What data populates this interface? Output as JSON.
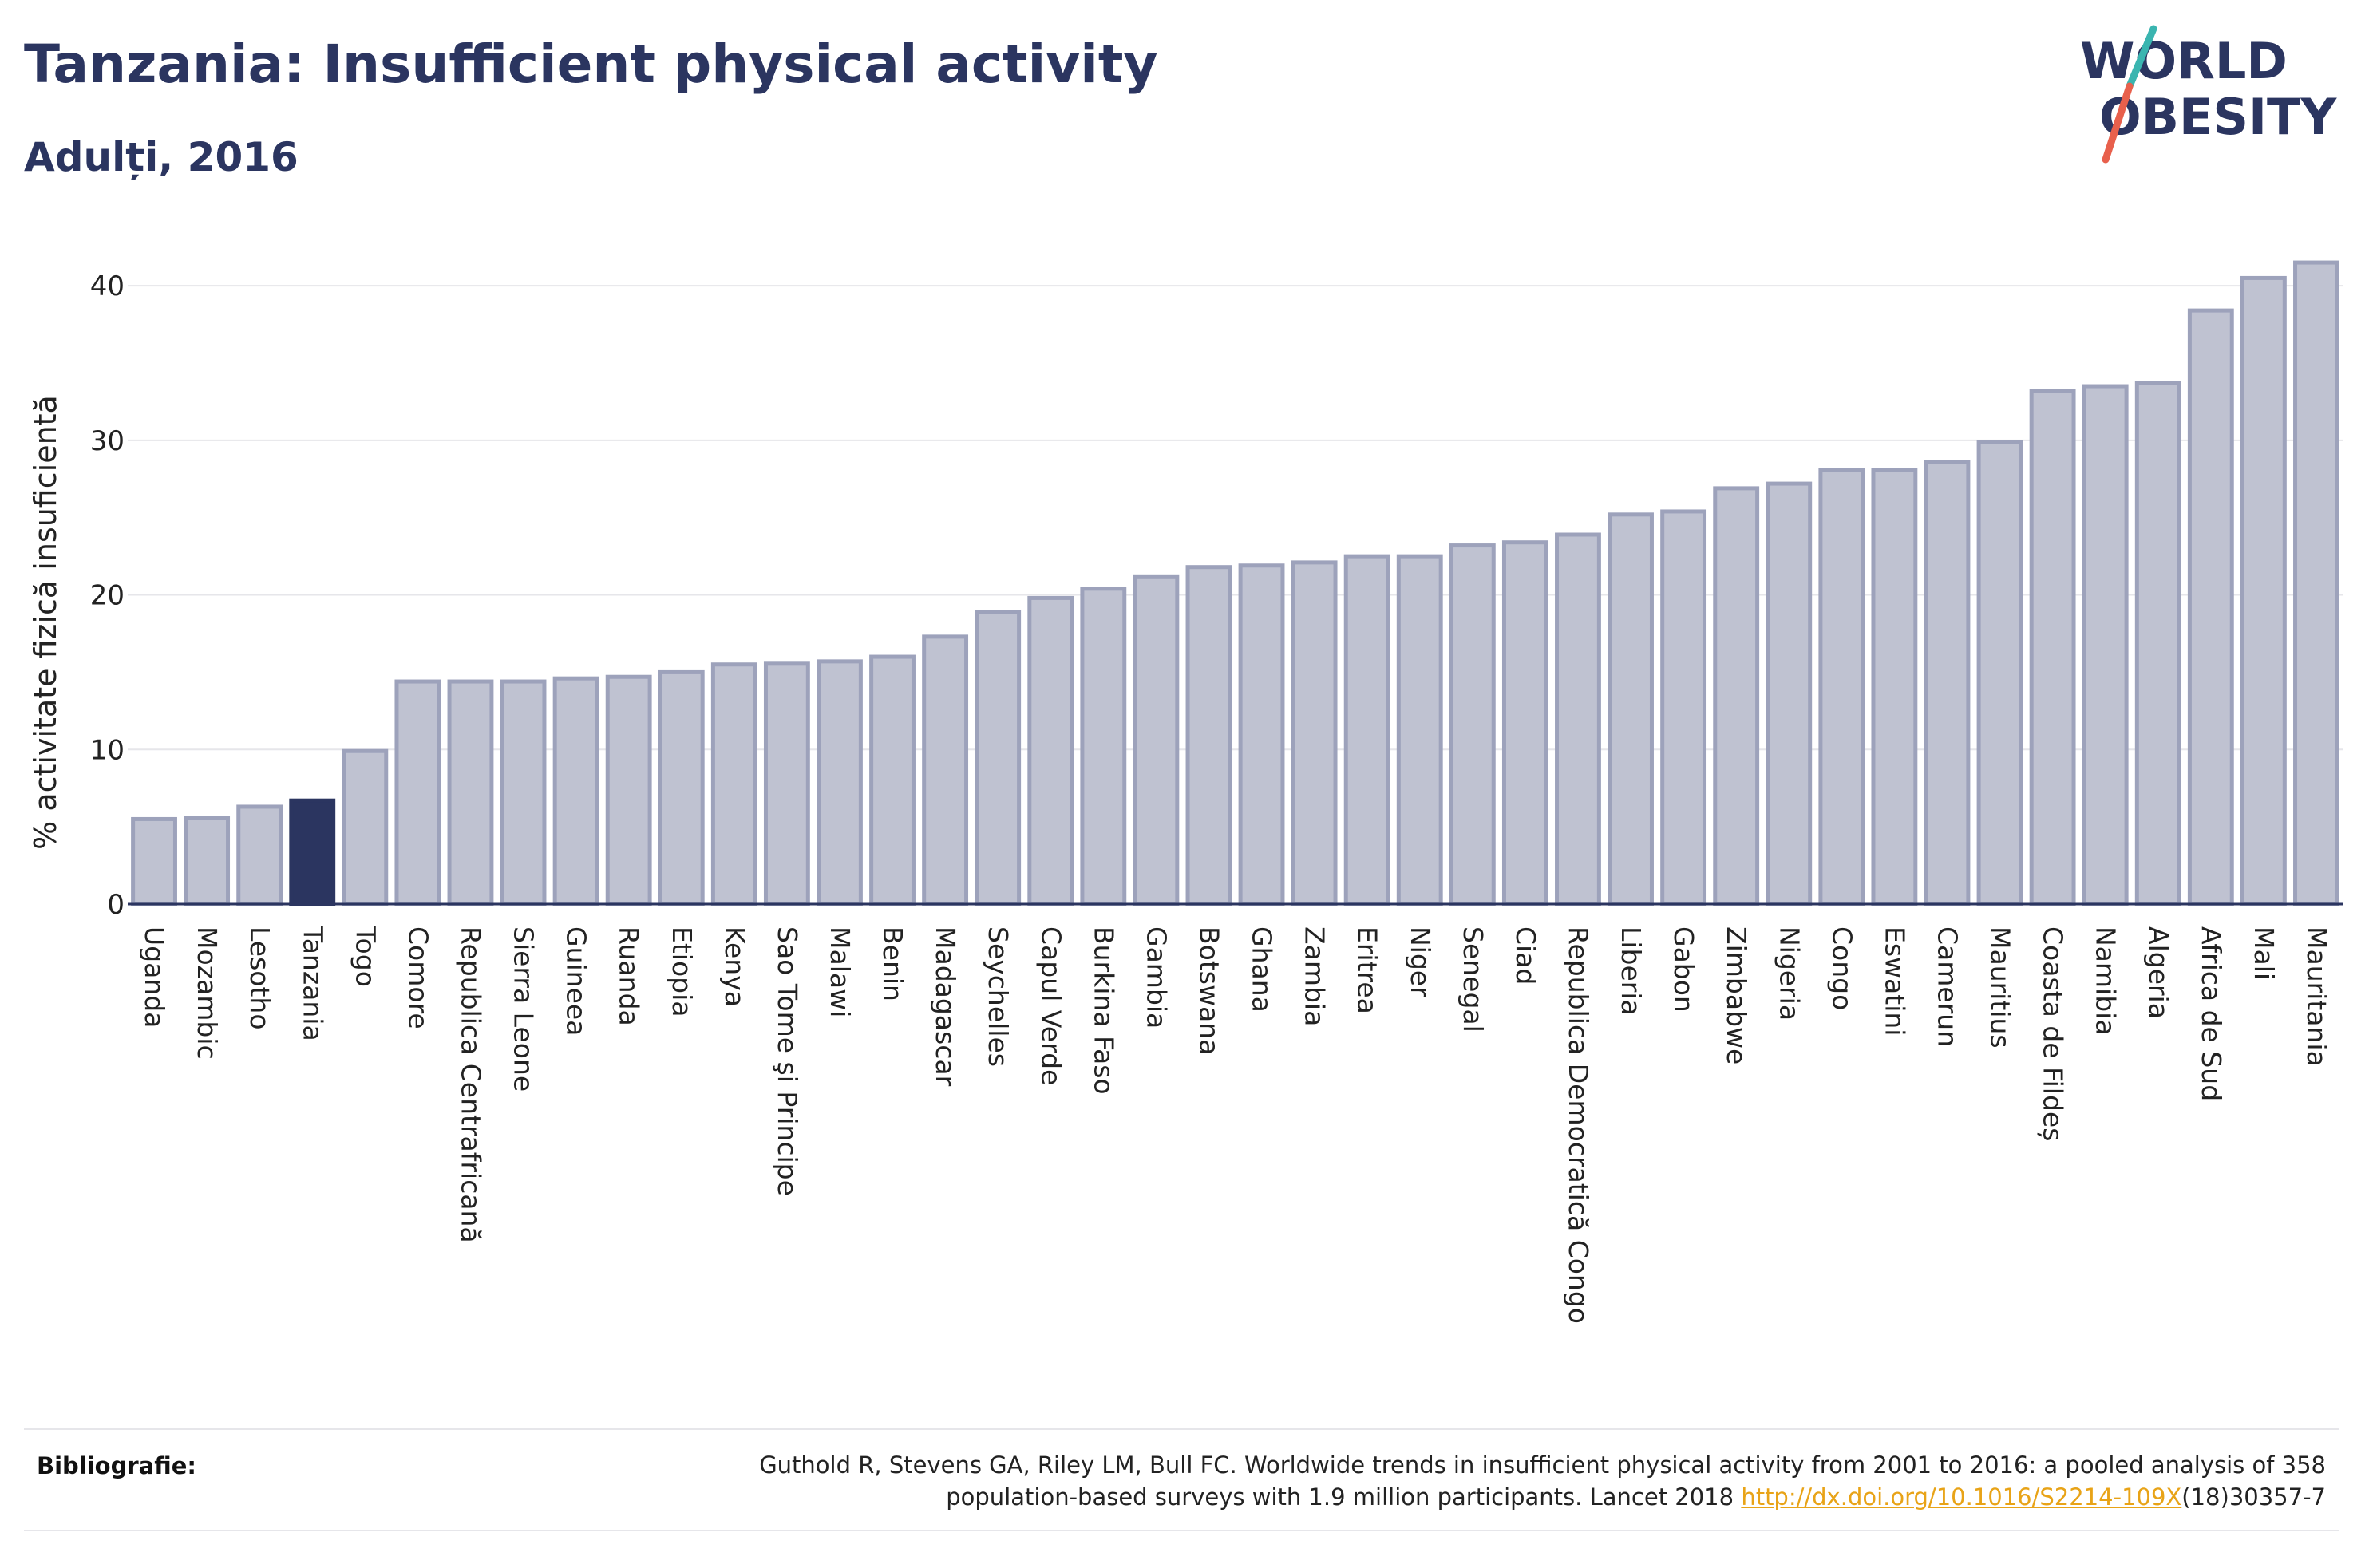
{
  "header": {
    "title": "Tanzania: Insufficient physical activity",
    "subtitle": "Adulți, 2016"
  },
  "logo": {
    "line1": "WORLD",
    "line2": "OBESITY",
    "text_color": "#2b3560",
    "slash_top_color": "#3ab5b0",
    "slash_bottom_color": "#e8604c"
  },
  "chart_data": {
    "type": "bar",
    "ylabel": "% activitate fizică insuficientă",
    "xlabel": "",
    "ylim": [
      0,
      43
    ],
    "yticks": [
      0,
      10,
      20,
      30,
      40
    ],
    "grid": true,
    "highlight": "Tanzania",
    "colors": {
      "bar_fill": "#bfc2d1",
      "bar_stroke": "#9da2bb",
      "highlight_fill": "#2b3560",
      "grid": "#e6e6ea",
      "axis": "#2b3560"
    },
    "categories": [
      "Uganda",
      "Mozambic",
      "Lesotho",
      "Tanzania",
      "Togo",
      "Comore",
      "Republica Centrafricană",
      "Sierra Leone",
      "Guineea",
      "Ruanda",
      "Etiopia",
      "Kenya",
      "Sao Tome şi Principe",
      "Malawi",
      "Benin",
      "Madagascar",
      "Seychelles",
      "Capul Verde",
      "Burkina Faso",
      "Gambia",
      "Botswana",
      "Ghana",
      "Zambia",
      "Eritrea",
      "Niger",
      "Senegal",
      "Ciad",
      "Republica Democratică Congo",
      "Liberia",
      "Gabon",
      "Zimbabwe",
      "Nigeria",
      "Congo",
      "Eswatini",
      "Camerun",
      "Mauritius",
      "Coasta de Fildeș",
      "Namibia",
      "Algeria",
      "Africa de Sud",
      "Mali",
      "Mauritania"
    ],
    "values": [
      5.5,
      5.6,
      6.3,
      6.7,
      9.9,
      14.4,
      14.4,
      14.4,
      14.6,
      14.7,
      15.0,
      15.5,
      15.6,
      15.7,
      16.0,
      17.3,
      18.9,
      19.8,
      20.4,
      21.2,
      21.8,
      21.9,
      22.1,
      22.5,
      22.5,
      23.2,
      23.4,
      23.9,
      25.2,
      25.4,
      26.9,
      27.2,
      28.1,
      28.1,
      28.6,
      29.9,
      33.2,
      33.5,
      33.7,
      38.4,
      40.5,
      41.5
    ]
  },
  "footer": {
    "label": "Bibliografie:",
    "citation_line1": "Guthold R, Stevens GA, Riley LM, Bull FC. Worldwide trends in insufficient physical activity from 2001 to 2016: a pooled analysis of 358",
    "citation_line2_pre": "population-based surveys with 1.9 million participants. Lancet 2018 ",
    "citation_link": "http://dx.doi.org/10.1016/S2214-109X",
    "citation_line2_post": "(18)30357-7"
  }
}
